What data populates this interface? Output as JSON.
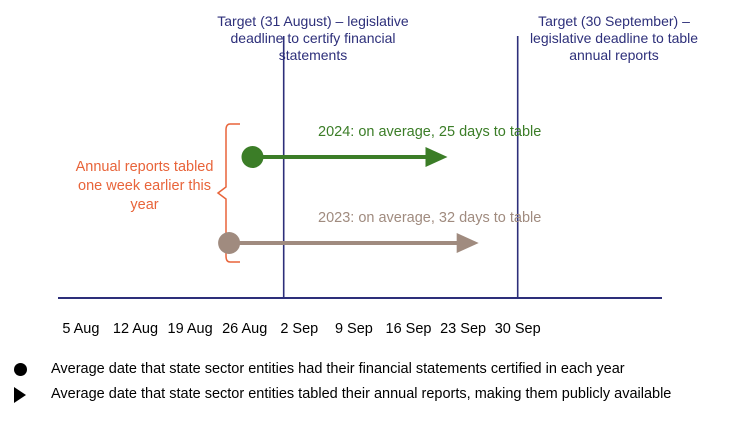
{
  "colors": {
    "target": "#2d2f7a",
    "callout": "#e8643a",
    "series_2024": "#3b7d27",
    "series_2023": "#a08b7f",
    "axis": "#2d2f7a"
  },
  "chart_data": {
    "type": "timeline",
    "axis_ticks": [
      "5 Aug",
      "12 Aug",
      "19 Aug",
      "26 Aug",
      "2 Sep",
      "9 Sep",
      "16 Sep",
      "23 Sep",
      "30 Sep"
    ],
    "xlim": [
      "2024-08-02",
      "2024-10-06"
    ],
    "targets": [
      {
        "date": "2024-08-31",
        "label": "Target (31 August) – legislative deadline to certify financial statements"
      },
      {
        "date": "2024-09-30",
        "label": "Target (30 September) – legislative deadline to table annual reports"
      }
    ],
    "series": [
      {
        "year": "2024",
        "certified_date": "2024-08-27",
        "tabled_date": "2024-09-21",
        "label": "2024: on average, 25 days to table"
      },
      {
        "year": "2023",
        "certified_date": "2024-08-24",
        "tabled_date": "2024-09-25",
        "label": "2023: on average, 32 days to table"
      }
    ],
    "callout": "Annual reports tabled one week earlier this year"
  },
  "labels": {
    "target1": "Target (31 August) – legislative deadline to certify financial statements",
    "target2": "Target (30 September) – legislative deadline to table annual reports",
    "callout": "Annual reports tabled one week earlier this year"
  },
  "legend": {
    "items": [
      {
        "icon": "circle-marker-icon",
        "label": "Average date that state sector entities had their financial statements certified in each year"
      },
      {
        "icon": "triangle-marker-icon",
        "label": "Average date that state sector entities tabled their annual reports, making them publicly available"
      }
    ]
  }
}
